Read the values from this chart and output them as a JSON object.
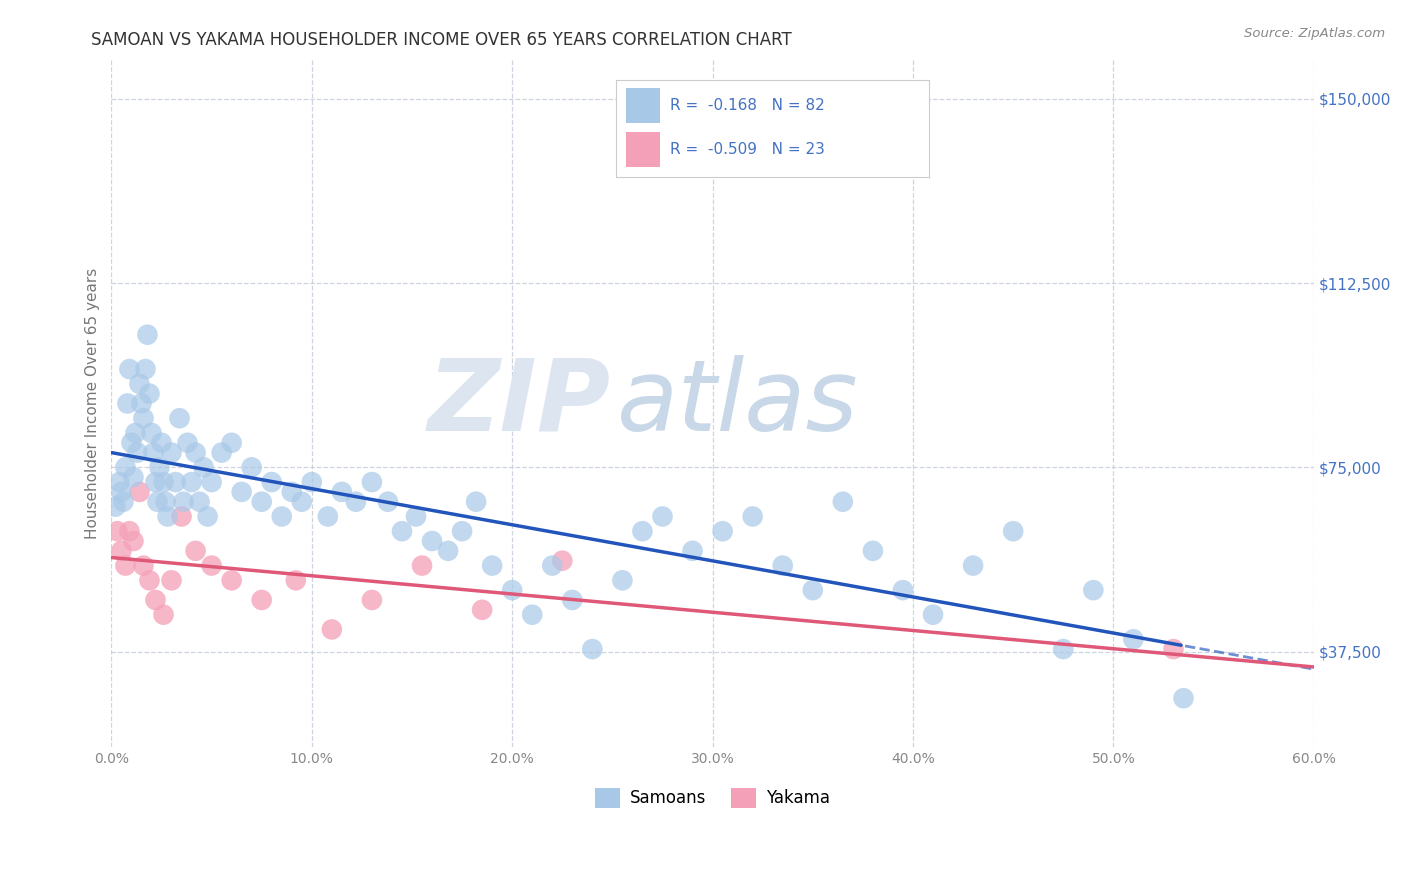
{
  "title": "SAMOAN VS YAKAMA HOUSEHOLDER INCOME OVER 65 YEARS CORRELATION CHART",
  "source": "Source: ZipAtlas.com",
  "ylabel_label": "Householder Income Over 65 years",
  "xlim": [
    0.0,
    0.6
  ],
  "ylim": [
    18000,
    158000
  ],
  "x_tick_positions": [
    0.0,
    0.1,
    0.2,
    0.3,
    0.4,
    0.5,
    0.6
  ],
  "x_tick_labels": [
    "0.0%",
    "10.0%",
    "20.0%",
    "30.0%",
    "40.0%",
    "50.0%",
    "60.0%"
  ],
  "y_tick_positions": [
    37500,
    75000,
    112500,
    150000
  ],
  "y_tick_labels": [
    "$37,500",
    "$75,000",
    "$112,500",
    "$150,000"
  ],
  "samoan_R": "-0.168",
  "samoan_N": "82",
  "yakama_R": "-0.509",
  "yakama_N": "23",
  "samoan_color": "#a8c8e8",
  "yakama_color": "#f4a0b8",
  "line_samoan_color": "#2255bb",
  "line_yakama_color": "#e05878",
  "watermark_zip_color": "#dde6f0",
  "watermark_atlas_color": "#c8d8e8",
  "background_color": "#ffffff",
  "grid_color": "#c8d0dc",
  "samoan_x": [
    0.002,
    0.004,
    0.005,
    0.006,
    0.007,
    0.008,
    0.009,
    0.01,
    0.011,
    0.012,
    0.013,
    0.014,
    0.015,
    0.016,
    0.017,
    0.018,
    0.019,
    0.02,
    0.021,
    0.022,
    0.023,
    0.024,
    0.025,
    0.026,
    0.027,
    0.028,
    0.03,
    0.032,
    0.034,
    0.036,
    0.038,
    0.04,
    0.042,
    0.044,
    0.046,
    0.048,
    0.05,
    0.055,
    0.06,
    0.065,
    0.07,
    0.075,
    0.08,
    0.085,
    0.09,
    0.095,
    0.1,
    0.108,
    0.115,
    0.122,
    0.13,
    0.138,
    0.145,
    0.152,
    0.16,
    0.168,
    0.175,
    0.182,
    0.19,
    0.2,
    0.21,
    0.22,
    0.23,
    0.24,
    0.255,
    0.265,
    0.275,
    0.29,
    0.305,
    0.32,
    0.335,
    0.35,
    0.365,
    0.38,
    0.395,
    0.41,
    0.43,
    0.45,
    0.475,
    0.49,
    0.51,
    0.535
  ],
  "samoan_y": [
    67000,
    72000,
    70000,
    68000,
    75000,
    88000,
    95000,
    80000,
    73000,
    82000,
    78000,
    92000,
    88000,
    85000,
    95000,
    102000,
    90000,
    82000,
    78000,
    72000,
    68000,
    75000,
    80000,
    72000,
    68000,
    65000,
    78000,
    72000,
    85000,
    68000,
    80000,
    72000,
    78000,
    68000,
    75000,
    65000,
    72000,
    78000,
    80000,
    70000,
    75000,
    68000,
    72000,
    65000,
    70000,
    68000,
    72000,
    65000,
    70000,
    68000,
    72000,
    68000,
    62000,
    65000,
    60000,
    58000,
    62000,
    68000,
    55000,
    50000,
    45000,
    55000,
    48000,
    38000,
    52000,
    62000,
    65000,
    58000,
    62000,
    65000,
    55000,
    50000,
    68000,
    58000,
    50000,
    45000,
    55000,
    62000,
    38000,
    50000,
    40000,
    28000
  ],
  "yakama_x": [
    0.003,
    0.005,
    0.007,
    0.009,
    0.011,
    0.014,
    0.016,
    0.019,
    0.022,
    0.026,
    0.03,
    0.035,
    0.042,
    0.05,
    0.06,
    0.075,
    0.092,
    0.11,
    0.13,
    0.155,
    0.185,
    0.225,
    0.53
  ],
  "yakama_y": [
    62000,
    58000,
    55000,
    62000,
    60000,
    70000,
    55000,
    52000,
    48000,
    45000,
    52000,
    65000,
    58000,
    55000,
    52000,
    48000,
    52000,
    42000,
    48000,
    55000,
    46000,
    56000,
    38000
  ]
}
